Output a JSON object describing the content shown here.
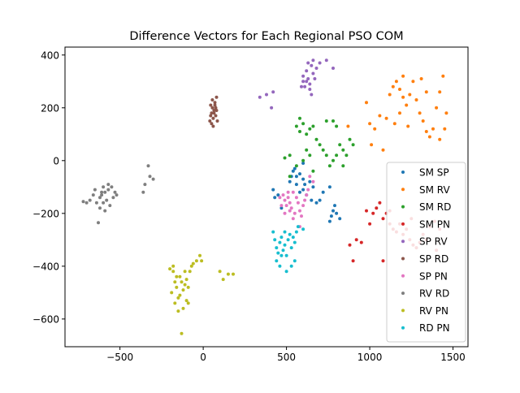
{
  "chart_data": {
    "type": "scatter",
    "title": "Difference Vectors for Each Regional PSO COM",
    "xlabel": "",
    "ylabel": "",
    "xlim": [
      -830,
      1590
    ],
    "ylim": [
      -705,
      430
    ],
    "xticks": [
      -500,
      0,
      500,
      1000,
      1500
    ],
    "yticks": [
      -600,
      -400,
      -200,
      0,
      200,
      400
    ],
    "xtick_labels": [
      "−500",
      "0",
      "500",
      "1000",
      "1500"
    ],
    "ytick_labels": [
      "−600",
      "−400",
      "−200",
      "0",
      "200",
      "400"
    ],
    "grid": false,
    "legend_position": "lower-right",
    "series": [
      {
        "name": "SM SP",
        "color": "#1f77b4",
        "points": [
          [
            420,
            -110
          ],
          [
            470,
            -180
          ],
          [
            540,
            -40
          ],
          [
            560,
            -60
          ],
          [
            580,
            -50
          ],
          [
            600,
            -70
          ],
          [
            560,
            -90
          ],
          [
            520,
            -80
          ],
          [
            600,
            -110
          ],
          [
            620,
            -130
          ],
          [
            650,
            -150
          ],
          [
            680,
            -160
          ],
          [
            700,
            -150
          ],
          [
            720,
            -120
          ],
          [
            760,
            -100
          ],
          [
            780,
            -190
          ],
          [
            800,
            -200
          ],
          [
            820,
            -220
          ],
          [
            770,
            -210
          ],
          [
            790,
            -170
          ],
          [
            660,
            -100
          ],
          [
            640,
            -80
          ],
          [
            550,
            -30
          ],
          [
            600,
            -10
          ],
          [
            580,
            -120
          ],
          [
            430,
            -140
          ],
          [
            450,
            -130
          ],
          [
            760,
            -230
          ],
          [
            610,
            -90
          ],
          [
            530,
            -60
          ]
        ]
      },
      {
        "name": "SM RV",
        "color": "#ff7f0e",
        "points": [
          [
            980,
            220
          ],
          [
            1000,
            140
          ],
          [
            1030,
            120
          ],
          [
            1060,
            170
          ],
          [
            1080,
            40
          ],
          [
            1100,
            160
          ],
          [
            1120,
            250
          ],
          [
            1140,
            280
          ],
          [
            1160,
            300
          ],
          [
            1180,
            270
          ],
          [
            1200,
            240
          ],
          [
            1220,
            210
          ],
          [
            1240,
            250
          ],
          [
            1260,
            300
          ],
          [
            1280,
            230
          ],
          [
            1300,
            180
          ],
          [
            1320,
            150
          ],
          [
            1340,
            110
          ],
          [
            1360,
            90
          ],
          [
            1380,
            120
          ],
          [
            1400,
            200
          ],
          [
            1420,
            260
          ],
          [
            1440,
            320
          ],
          [
            1460,
            180
          ],
          [
            1450,
            120
          ],
          [
            1230,
            130
          ],
          [
            1180,
            180
          ],
          [
            1150,
            140
          ],
          [
            1010,
            60
          ],
          [
            1310,
            310
          ],
          [
            870,
            130
          ],
          [
            1200,
            320
          ],
          [
            1420,
            80
          ],
          [
            1340,
            260
          ]
        ]
      },
      {
        "name": "SM RD",
        "color": "#2ca02c",
        "points": [
          [
            560,
            130
          ],
          [
            580,
            110
          ],
          [
            600,
            140
          ],
          [
            620,
            100
          ],
          [
            640,
            120
          ],
          [
            660,
            130
          ],
          [
            680,
            80
          ],
          [
            700,
            60
          ],
          [
            720,
            40
          ],
          [
            740,
            20
          ],
          [
            760,
            -20
          ],
          [
            780,
            0
          ],
          [
            800,
            20
          ],
          [
            820,
            60
          ],
          [
            840,
            40
          ],
          [
            860,
            20
          ],
          [
            880,
            80
          ],
          [
            900,
            60
          ],
          [
            780,
            150
          ],
          [
            800,
            130
          ],
          [
            740,
            150
          ],
          [
            620,
            40
          ],
          [
            640,
            20
          ],
          [
            560,
            -20
          ],
          [
            520,
            20
          ],
          [
            490,
            10
          ],
          [
            600,
            0
          ],
          [
            840,
            -20
          ],
          [
            660,
            -40
          ],
          [
            520,
            -60
          ],
          [
            580,
            160
          ]
        ]
      },
      {
        "name": "SM PN",
        "color": "#d62728",
        "points": [
          [
            980,
            -190
          ],
          [
            1000,
            -240
          ],
          [
            1020,
            -200
          ],
          [
            1040,
            -180
          ],
          [
            1060,
            -160
          ],
          [
            1080,
            -220
          ],
          [
            1100,
            -200
          ],
          [
            1120,
            -240
          ],
          [
            1140,
            -260
          ],
          [
            1160,
            -270
          ],
          [
            1180,
            -240
          ],
          [
            1200,
            -280
          ],
          [
            1220,
            -260
          ],
          [
            1240,
            -300
          ],
          [
            1260,
            -320
          ],
          [
            1280,
            -330
          ],
          [
            1300,
            -310
          ],
          [
            1320,
            -280
          ],
          [
            1340,
            -300
          ],
          [
            1360,
            -250
          ],
          [
            1390,
            -230
          ],
          [
            1420,
            -260
          ],
          [
            920,
            -300
          ],
          [
            880,
            -320
          ],
          [
            900,
            -380
          ],
          [
            950,
            -310
          ],
          [
            1080,
            -380
          ],
          [
            1400,
            -340
          ],
          [
            1250,
            -220
          ],
          [
            1120,
            -190
          ]
        ]
      },
      {
        "name": "SP RV",
        "color": "#9467bd",
        "points": [
          [
            600,
            300
          ],
          [
            610,
            280
          ],
          [
            620,
            340
          ],
          [
            630,
            310
          ],
          [
            640,
            290
          ],
          [
            650,
            360
          ],
          [
            660,
            330
          ],
          [
            670,
            310
          ],
          [
            680,
            350
          ],
          [
            640,
            270
          ],
          [
            620,
            300
          ],
          [
            600,
            320
          ],
          [
            590,
            280
          ],
          [
            650,
            250
          ],
          [
            700,
            370
          ],
          [
            740,
            380
          ],
          [
            780,
            350
          ],
          [
            380,
            250
          ],
          [
            420,
            260
          ],
          [
            340,
            240
          ],
          [
            410,
            200
          ],
          [
            660,
            380
          ],
          [
            630,
            370
          ]
        ]
      },
      {
        "name": "SP RD",
        "color": "#8c564b",
        "points": [
          [
            40,
            150
          ],
          [
            45,
            170
          ],
          [
            50,
            180
          ],
          [
            55,
            200
          ],
          [
            60,
            160
          ],
          [
            65,
            190
          ],
          [
            70,
            210
          ],
          [
            50,
            140
          ],
          [
            60,
            130
          ],
          [
            75,
            170
          ],
          [
            80,
            190
          ],
          [
            45,
            210
          ],
          [
            70,
            220
          ],
          [
            55,
            230
          ],
          [
            85,
            150
          ],
          [
            65,
            180
          ],
          [
            75,
            200
          ],
          [
            80,
            240
          ]
        ]
      },
      {
        "name": "SP PN",
        "color": "#e377c2",
        "points": [
          [
            480,
            -130
          ],
          [
            490,
            -150
          ],
          [
            500,
            -170
          ],
          [
            510,
            -140
          ],
          [
            520,
            -160
          ],
          [
            530,
            -180
          ],
          [
            540,
            -120
          ],
          [
            550,
            -200
          ],
          [
            560,
            -140
          ],
          [
            570,
            -160
          ],
          [
            580,
            -190
          ],
          [
            590,
            -210
          ],
          [
            600,
            -170
          ],
          [
            610,
            -150
          ],
          [
            620,
            -130
          ],
          [
            630,
            -110
          ],
          [
            470,
            -170
          ],
          [
            460,
            -140
          ],
          [
            510,
            -120
          ],
          [
            540,
            -220
          ],
          [
            580,
            -250
          ],
          [
            640,
            -60
          ],
          [
            660,
            -80
          ],
          [
            490,
            -200
          ],
          [
            520,
            -190
          ]
        ]
      },
      {
        "name": "RV RD",
        "color": "#7f7f7f",
        "points": [
          [
            -620,
            -140
          ],
          [
            -610,
            -130
          ],
          [
            -600,
            -160
          ],
          [
            -590,
            -120
          ],
          [
            -580,
            -150
          ],
          [
            -570,
            -110
          ],
          [
            -560,
            -170
          ],
          [
            -550,
            -100
          ],
          [
            -540,
            -140
          ],
          [
            -530,
            -120
          ],
          [
            -640,
            -160
          ],
          [
            -650,
            -110
          ],
          [
            -660,
            -130
          ],
          [
            -680,
            -150
          ],
          [
            -700,
            -160
          ],
          [
            -720,
            -155
          ],
          [
            -620,
            -180
          ],
          [
            -600,
            -100
          ],
          [
            -570,
            -90
          ],
          [
            -520,
            -130
          ],
          [
            -630,
            -235
          ],
          [
            -330,
            -20
          ],
          [
            -320,
            -60
          ],
          [
            -300,
            -70
          ],
          [
            -350,
            -90
          ],
          [
            -360,
            -120
          ],
          [
            -590,
            -190
          ],
          [
            -610,
            -120
          ]
        ]
      },
      {
        "name": "RV PN",
        "color": "#bcbd22",
        "points": [
          [
            -200,
            -410
          ],
          [
            -190,
            -500
          ],
          [
            -180,
            -420
          ],
          [
            -170,
            -460
          ],
          [
            -160,
            -480
          ],
          [
            -150,
            -520
          ],
          [
            -140,
            -440
          ],
          [
            -130,
            -460
          ],
          [
            -120,
            -490
          ],
          [
            -110,
            -470
          ],
          [
            -100,
            -450
          ],
          [
            -90,
            -480
          ],
          [
            -80,
            -420
          ],
          [
            -70,
            -400
          ],
          [
            -60,
            -390
          ],
          [
            -40,
            -380
          ],
          [
            -20,
            -360
          ],
          [
            -10,
            -380
          ],
          [
            -170,
            -540
          ],
          [
            -150,
            -570
          ],
          [
            -120,
            -560
          ],
          [
            -90,
            -540
          ],
          [
            -130,
            -655
          ],
          [
            -180,
            -400
          ],
          [
            -160,
            -440
          ],
          [
            100,
            -420
          ],
          [
            120,
            -450
          ],
          [
            150,
            -430
          ],
          [
            180,
            -430
          ],
          [
            -140,
            -510
          ],
          [
            -110,
            -420
          ],
          [
            -100,
            -530
          ]
        ]
      },
      {
        "name": "RD PN",
        "color": "#17becf",
        "points": [
          [
            420,
            -270
          ],
          [
            430,
            -300
          ],
          [
            440,
            -330
          ],
          [
            450,
            -350
          ],
          [
            460,
            -310
          ],
          [
            470,
            -290
          ],
          [
            480,
            -340
          ],
          [
            490,
            -320
          ],
          [
            500,
            -360
          ],
          [
            510,
            -300
          ],
          [
            520,
            -280
          ],
          [
            530,
            -330
          ],
          [
            540,
            -290
          ],
          [
            550,
            -310
          ],
          [
            560,
            -270
          ],
          [
            570,
            -250
          ],
          [
            440,
            -380
          ],
          [
            460,
            -400
          ],
          [
            500,
            -420
          ],
          [
            530,
            -400
          ],
          [
            550,
            -380
          ],
          [
            600,
            -260
          ],
          [
            490,
            -270
          ],
          [
            470,
            -360
          ]
        ]
      }
    ]
  }
}
